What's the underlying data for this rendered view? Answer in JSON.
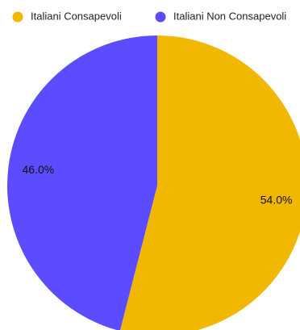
{
  "chart_data": {
    "type": "pie",
    "categories": [
      "Italiani Consapevoli",
      "Italiani Non Consapevoli"
    ],
    "values": [
      54.0,
      46.0
    ],
    "data_labels": [
      "54.0%",
      "46.0%"
    ],
    "colors": [
      "#F0B800",
      "#5B4DFF"
    ],
    "title": "",
    "legend_position": "top",
    "start_angle": "12 o'clock",
    "direction": "clockwise"
  }
}
